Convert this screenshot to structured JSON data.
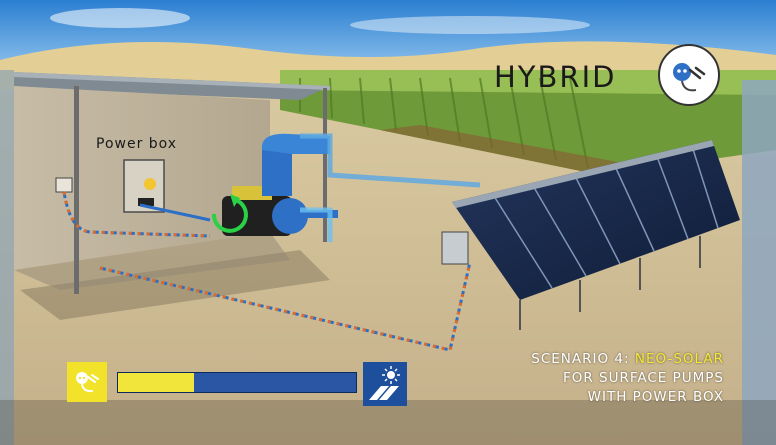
{
  "title": "HYBRID",
  "power_box_label": "Power box",
  "scenario": {
    "prefix": "SCENARIO 4: ",
    "highlight": "NEO-SOLAR",
    "line2": "FOR SURFACE PUMPS",
    "line3": "WITH POWER BOX"
  },
  "energy_mix": {
    "grid_share": 0.32,
    "solar_share": 0.68,
    "grid_icon": "plug-icon",
    "solar_icon": "solar-panel-icon"
  },
  "colors": {
    "grid": "#f1e43a",
    "solar": "#2a56a3",
    "highlight": "#f5e832"
  }
}
